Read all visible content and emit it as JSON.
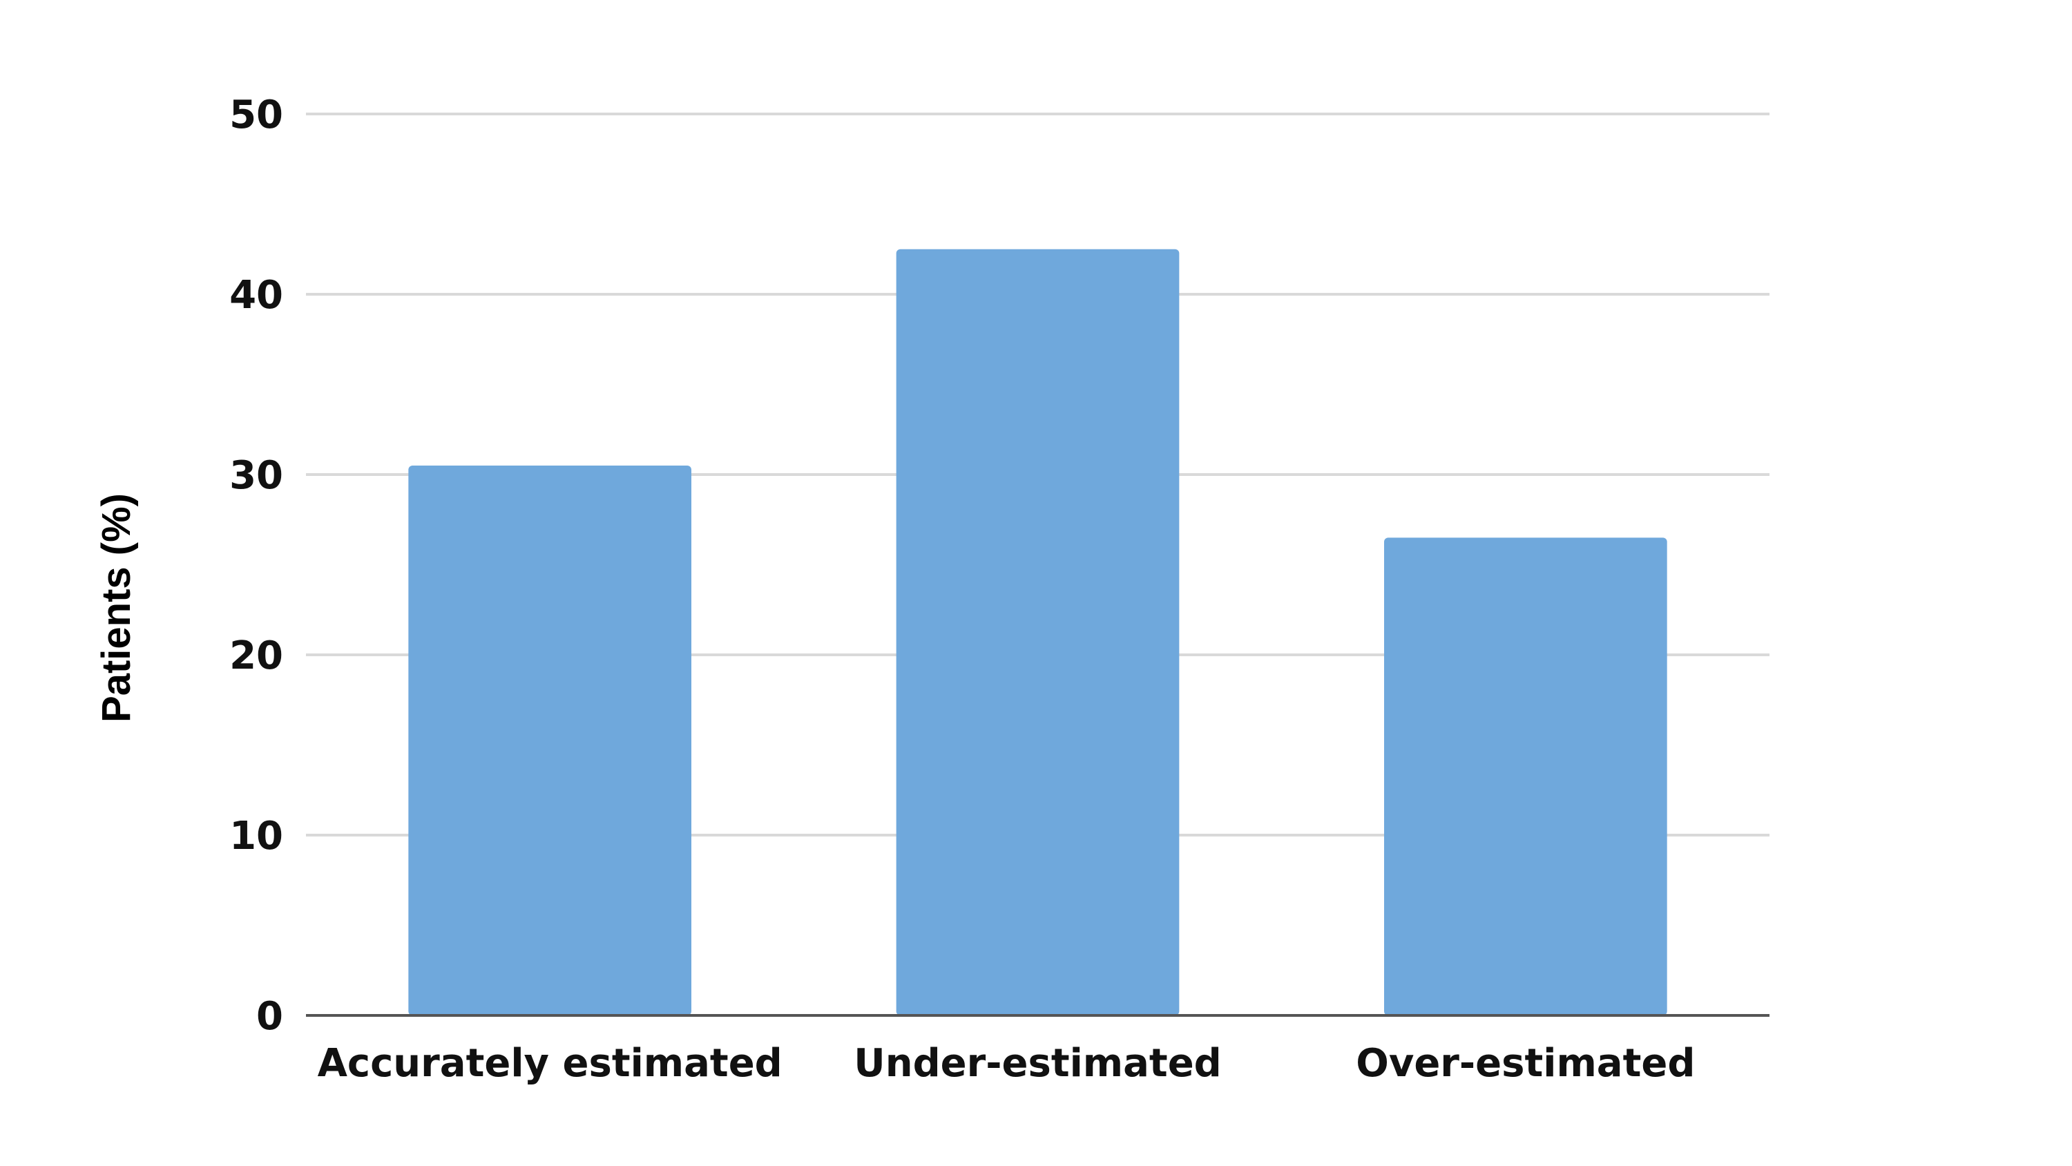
{
  "chart_data": {
    "type": "bar",
    "title": "",
    "xlabel": "",
    "ylabel": "Patients (%)",
    "categories": [
      "Accurately estimated",
      "Under-estimated",
      "Over-estimated"
    ],
    "values": [
      30.5,
      42.5,
      26.5
    ],
    "ylim": [
      0,
      50
    ],
    "yticks": [
      0,
      10,
      20,
      30,
      40,
      50
    ],
    "grid": true,
    "legend": "none",
    "colors": {
      "bar": "#6fa8dc",
      "grid": "#d9d9d9",
      "axis": "#555555"
    }
  }
}
